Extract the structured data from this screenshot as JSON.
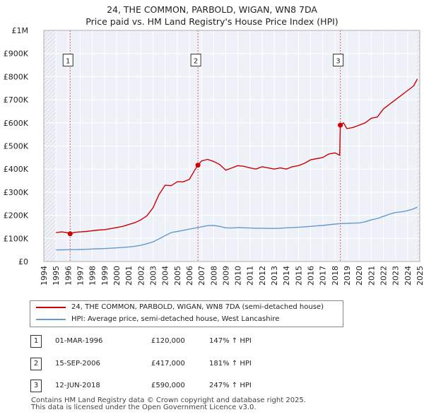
{
  "title_line1": "24, THE COMMON, PARBOLD, WIGAN, WN8 7DA",
  "title_line2": "Price paid vs. HM Land Registry's House Price Index (HPI)",
  "colors": {
    "property": "#cc0000",
    "hpi": "#6699cc",
    "grid": "#d8d8d8",
    "background": "#eef2f8",
    "vline": "#e06060"
  },
  "legend": {
    "property_label": "24, THE COMMON, PARBOLD, WIGAN, WN8 7DA (semi-detached house)",
    "hpi_label": "HPI: Average price, semi-detached house, West Lancashire"
  },
  "sales": [
    {
      "num": "1",
      "date": "01-MAR-1996",
      "price": "£120,000",
      "hpi_change": "147% ↑ HPI"
    },
    {
      "num": "2",
      "date": "15-SEP-2006",
      "price": "£417,000",
      "hpi_change": "181% ↑ HPI"
    },
    {
      "num": "3",
      "date": "12-JUN-2018",
      "price": "£590,000",
      "hpi_change": "247% ↑ HPI"
    }
  ],
  "footer_line1": "Contains HM Land Registry data © Crown copyright and database right 2025.",
  "footer_line2": "This data is licensed under the Open Government Licence v3.0.",
  "chart_data": {
    "type": "line",
    "title": "24, THE COMMON, PARBOLD, WIGAN, WN8 7DA — Price paid vs. HM Land Registry's House Price Index (HPI)",
    "xlabel": "",
    "ylabel": "",
    "xlim": [
      1994,
      2025
    ],
    "ylim": [
      0,
      1000000
    ],
    "x_ticks": [
      1994,
      1995,
      1996,
      1997,
      1998,
      1999,
      2000,
      2001,
      2002,
      2003,
      2004,
      2005,
      2006,
      2007,
      2008,
      2009,
      2010,
      2011,
      2012,
      2013,
      2014,
      2015,
      2016,
      2017,
      2018,
      2019,
      2020,
      2021,
      2022,
      2023,
      2024,
      2025
    ],
    "y_ticks": [
      0,
      100000,
      200000,
      300000,
      400000,
      500000,
      600000,
      700000,
      800000,
      900000,
      1000000
    ],
    "y_tick_labels": [
      "£0",
      "£100K",
      "£200K",
      "£300K",
      "£400K",
      "£500K",
      "£600K",
      "£700K",
      "£800K",
      "£900K",
      "£1M"
    ],
    "hatched_ranges": [
      [
        1994,
        1995
      ],
      [
        2024.8,
        2025
      ]
    ],
    "sale_markers": [
      {
        "label": "1",
        "x": 1996.17,
        "y": 120000
      },
      {
        "label": "2",
        "x": 2006.71,
        "y": 417000
      },
      {
        "label": "3",
        "x": 2018.45,
        "y": 590000
      }
    ],
    "series": [
      {
        "name": "24, THE COMMON, PARBOLD, WIGAN, WN8 7DA (semi-detached house)",
        "x": [
          1995.0,
          1995.5,
          1996.0,
          1996.17,
          1996.5,
          1997.0,
          1997.5,
          1998.0,
          1998.5,
          1999.0,
          1999.5,
          2000.0,
          2000.5,
          2001.0,
          2001.5,
          2002.0,
          2002.5,
          2003.0,
          2003.5,
          2004.0,
          2004.5,
          2005.0,
          2005.5,
          2006.0,
          2006.5,
          2006.71,
          2007.0,
          2007.5,
          2008.0,
          2008.5,
          2009.0,
          2009.5,
          2010.0,
          2010.5,
          2011.0,
          2011.5,
          2012.0,
          2012.5,
          2013.0,
          2013.5,
          2014.0,
          2014.5,
          2015.0,
          2015.5,
          2016.0,
          2016.5,
          2017.0,
          2017.5,
          2018.0,
          2018.4,
          2018.45,
          2018.7,
          2019.0,
          2019.5,
          2020.0,
          2020.5,
          2021.0,
          2021.5,
          2022.0,
          2022.5,
          2023.0,
          2023.5,
          2024.0,
          2024.5,
          2024.8
        ],
        "values": [
          125000,
          128000,
          124000,
          120000,
          126000,
          128000,
          130000,
          133000,
          136000,
          138000,
          142000,
          147000,
          152000,
          160000,
          168000,
          180000,
          198000,
          232000,
          290000,
          330000,
          328000,
          345000,
          345000,
          355000,
          400000,
          417000,
          435000,
          442000,
          433000,
          420000,
          395000,
          405000,
          415000,
          412000,
          405000,
          400000,
          410000,
          405000,
          400000,
          405000,
          400000,
          410000,
          415000,
          425000,
          440000,
          445000,
          450000,
          465000,
          470000,
          460000,
          590000,
          600000,
          575000,
          580000,
          590000,
          600000,
          620000,
          625000,
          660000,
          680000,
          700000,
          720000,
          740000,
          760000,
          790000
        ]
      },
      {
        "name": "HPI: Average price, semi-detached house, West Lancashire",
        "x": [
          1995.0,
          1995.5,
          1996.0,
          1996.5,
          1997.0,
          1997.5,
          1998.0,
          1998.5,
          1999.0,
          1999.5,
          2000.0,
          2000.5,
          2001.0,
          2001.5,
          2002.0,
          2002.5,
          2003.0,
          2003.5,
          2004.0,
          2004.5,
          2005.0,
          2005.5,
          2006.0,
          2006.5,
          2007.0,
          2007.5,
          2008.0,
          2008.5,
          2009.0,
          2009.5,
          2010.0,
          2010.5,
          2011.0,
          2011.5,
          2012.0,
          2012.5,
          2013.0,
          2013.5,
          2014.0,
          2014.5,
          2015.0,
          2015.5,
          2016.0,
          2016.5,
          2017.0,
          2017.5,
          2018.0,
          2018.5,
          2019.0,
          2019.5,
          2020.0,
          2020.5,
          2021.0,
          2021.5,
          2022.0,
          2022.5,
          2023.0,
          2023.5,
          2024.0,
          2024.5,
          2024.8
        ],
        "values": [
          50000,
          50500,
          51000,
          51500,
          52000,
          53000,
          54000,
          55000,
          56000,
          57500,
          59000,
          61000,
          63000,
          66000,
          70000,
          77000,
          85000,
          98000,
          112000,
          125000,
          130000,
          135000,
          140000,
          145000,
          150000,
          155000,
          156000,
          152000,
          146000,
          145000,
          147000,
          146000,
          145000,
          144000,
          144000,
          143000,
          143000,
          144000,
          146000,
          147000,
          148000,
          150000,
          152000,
          154000,
          156000,
          159000,
          162000,
          164000,
          165000,
          166000,
          167000,
          172000,
          180000,
          186000,
          195000,
          205000,
          212000,
          215000,
          220000,
          228000,
          235000
        ]
      }
    ]
  }
}
